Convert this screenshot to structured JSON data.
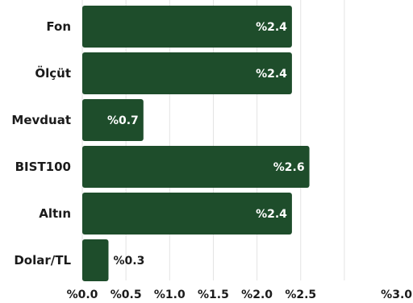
{
  "chart_data": {
    "type": "bar",
    "orientation": "horizontal",
    "categories": [
      "Fon",
      "Ölçüt",
      "Mevduat",
      "BIST100",
      "Altın",
      "Dolar/TL"
    ],
    "values": [
      2.4,
      2.4,
      0.7,
      2.6,
      2.4,
      0.3
    ],
    "value_labels": [
      "%2.4",
      "%2.4",
      "%0.7",
      "%2.6",
      "%2.4",
      "%0.3"
    ],
    "xlim": [
      0,
      3.0
    ],
    "x_ticks": [
      "%0.0",
      "%0.5",
      "%1.0",
      "%1.5",
      "%2.0",
      "%2.5",
      "%3.0"
    ],
    "grid": "vertical",
    "title": "",
    "xlabel": "",
    "ylabel": ""
  },
  "colors": {
    "bar": "#1e4d2b",
    "grid": "#e3e3e3",
    "label_inside": "#ffffff",
    "label_outside": "#1b1b1b"
  }
}
